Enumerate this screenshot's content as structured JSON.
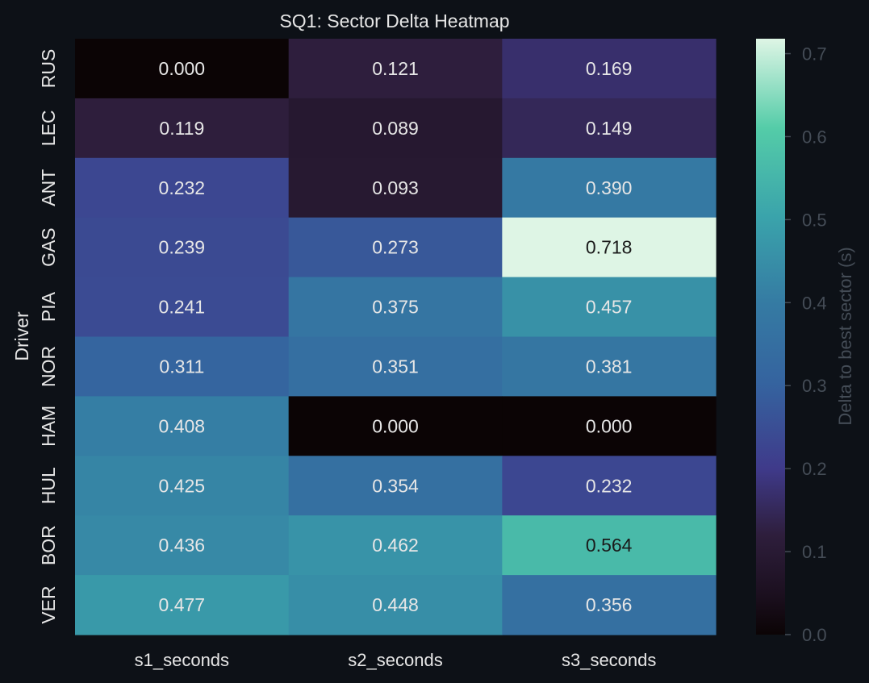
{
  "chart_data": {
    "type": "heatmap",
    "title": "SQ1: Sector Delta Heatmap",
    "xlabel": "",
    "ylabel": "Driver",
    "x_categories": [
      "s1_seconds",
      "s2_seconds",
      "s3_seconds"
    ],
    "y_categories": [
      "RUS",
      "LEC",
      "ANT",
      "GAS",
      "PIA",
      "NOR",
      "HAM",
      "HUL",
      "BOR",
      "VER"
    ],
    "values": [
      [
        0.0,
        0.121,
        0.169
      ],
      [
        0.119,
        0.089,
        0.149
      ],
      [
        0.232,
        0.093,
        0.39
      ],
      [
        0.239,
        0.273,
        0.718
      ],
      [
        0.241,
        0.375,
        0.457
      ],
      [
        0.311,
        0.351,
        0.381
      ],
      [
        0.408,
        0.0,
        0.0
      ],
      [
        0.425,
        0.354,
        0.232
      ],
      [
        0.436,
        0.462,
        0.564
      ],
      [
        0.477,
        0.448,
        0.356
      ]
    ],
    "colorbar": {
      "label": "Delta to best sector (s)",
      "ticks": [
        "0.0",
        "0.1",
        "0.2",
        "0.3",
        "0.4",
        "0.5",
        "0.6",
        "0.7"
      ],
      "range": [
        0,
        0.718
      ],
      "colormap": "mako"
    }
  },
  "colors": {
    "background": "#0d1117",
    "text": "#e6e6e6",
    "muted_text": "#444c56",
    "dark_label": "#1a1a1a"
  }
}
